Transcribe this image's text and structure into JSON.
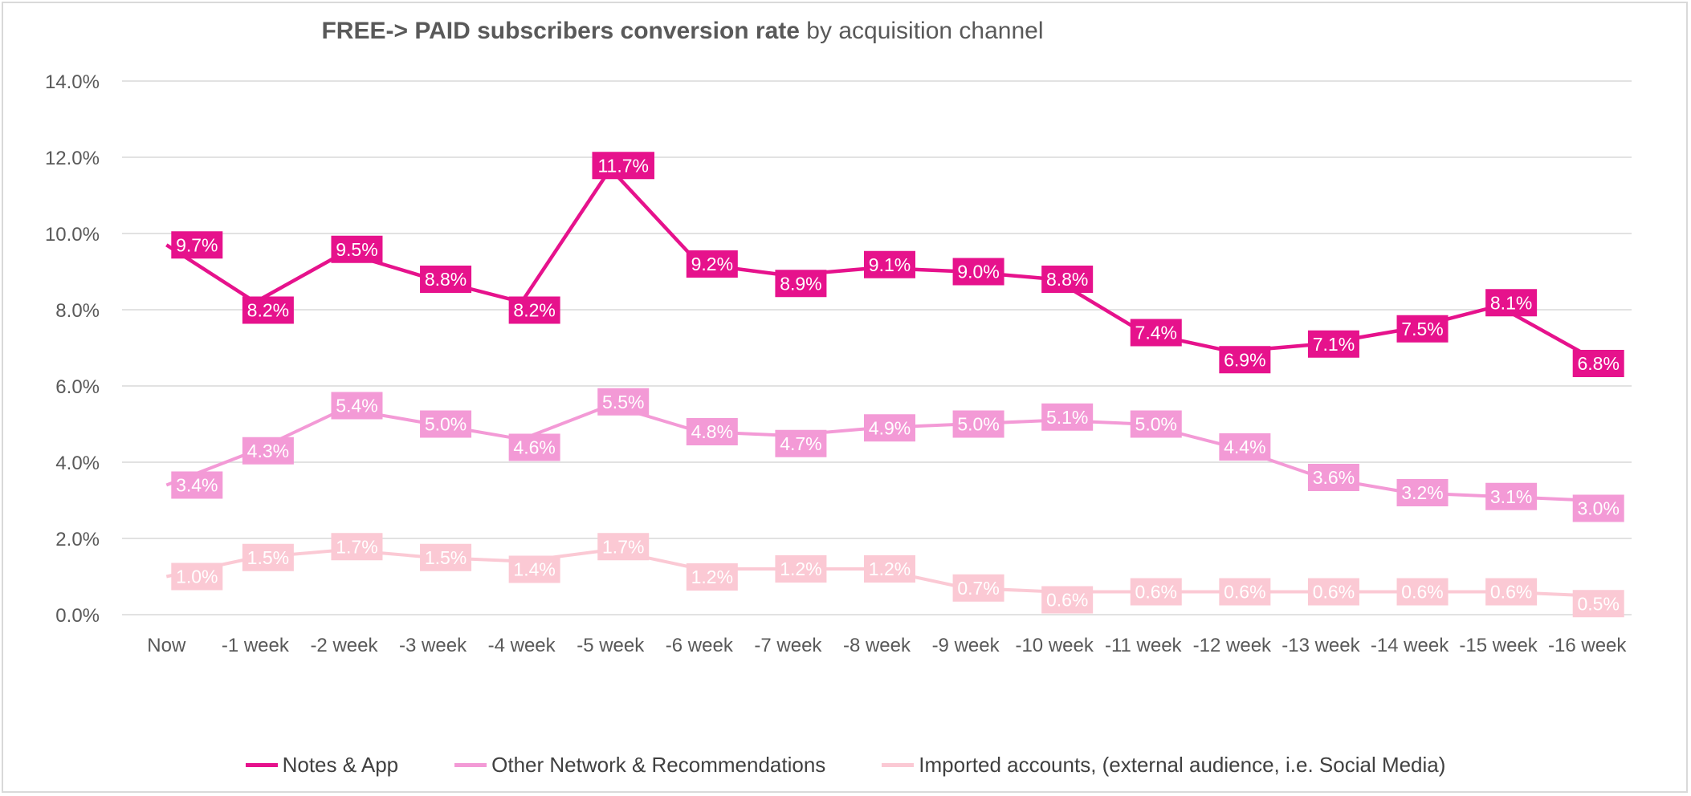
{
  "chart_data": {
    "type": "line",
    "title_bold": "FREE-> PAID subscribers conversion rate",
    "title_rest": " by acquisition channel",
    "xlabel": "",
    "ylabel": "",
    "categories": [
      "Now",
      "-1 week",
      "-2 week",
      "-3 week",
      "-4 week",
      "-5 week",
      "-6 week",
      "-7 week",
      "-8 week",
      "-9 week",
      "-10 week",
      "-11 week",
      "-12 week",
      "-13 week",
      "-14 week",
      "-15 week",
      "-16 week"
    ],
    "ylim": [
      0,
      14
    ],
    "yticks": [
      0,
      2,
      4,
      6,
      8,
      10,
      12,
      14
    ],
    "ytick_labels": [
      "0.0%",
      "2.0%",
      "4.0%",
      "6.0%",
      "8.0%",
      "10.0%",
      "12.0%",
      "14.0%"
    ],
    "grid": true,
    "legend_position": "bottom",
    "series": [
      {
        "name": "Notes & App",
        "color": "#e6128c",
        "label_text_color": "#ffffff",
        "values": [
          9.7,
          8.2,
          9.5,
          8.8,
          8.2,
          11.7,
          9.2,
          8.9,
          9.1,
          9.0,
          8.8,
          7.4,
          6.9,
          7.1,
          7.5,
          8.1,
          6.8
        ],
        "labels": [
          "9.7%",
          "8.2%",
          "9.5%",
          "8.8%",
          "8.2%",
          "11.7%",
          "9.2%",
          "8.9%",
          "9.1%",
          "9.0%",
          "8.8%",
          "7.4%",
          "6.9%",
          "7.1%",
          "7.5%",
          "8.1%",
          "6.8%"
        ]
      },
      {
        "name": "Other Network & Recommendations",
        "color": "#f39ad6",
        "label_text_color": "#ffffff",
        "values": [
          3.4,
          4.3,
          5.4,
          5.0,
          4.6,
          5.5,
          4.8,
          4.7,
          4.9,
          5.0,
          5.1,
          5.0,
          4.4,
          3.6,
          3.2,
          3.1,
          3.0
        ],
        "labels": [
          "3.4%",
          "4.3%",
          "5.4%",
          "5.0%",
          "4.6%",
          "5.5%",
          "4.8%",
          "4.7%",
          "4.9%",
          "5.0%",
          "5.1%",
          "5.0%",
          "4.4%",
          "3.6%",
          "3.2%",
          "3.1%",
          "3.0%"
        ]
      },
      {
        "name": "Imported accounts, (external audience, i.e. Social Media)",
        "color": "#fbc9d4",
        "label_text_color": "#ffffff",
        "values": [
          1.0,
          1.5,
          1.7,
          1.5,
          1.4,
          1.7,
          1.2,
          1.2,
          1.2,
          0.7,
          0.6,
          0.6,
          0.6,
          0.6,
          0.6,
          0.6,
          0.5
        ],
        "labels": [
          "1.0%",
          "1.5%",
          "1.7%",
          "1.5%",
          "1.4%",
          "1.7%",
          "1.2%",
          "1.2%",
          "1.2%",
          "0.7%",
          "0.6%",
          "0.6%",
          "0.6%",
          "0.6%",
          "0.6%",
          "0.6%",
          "0.5%"
        ]
      }
    ]
  }
}
